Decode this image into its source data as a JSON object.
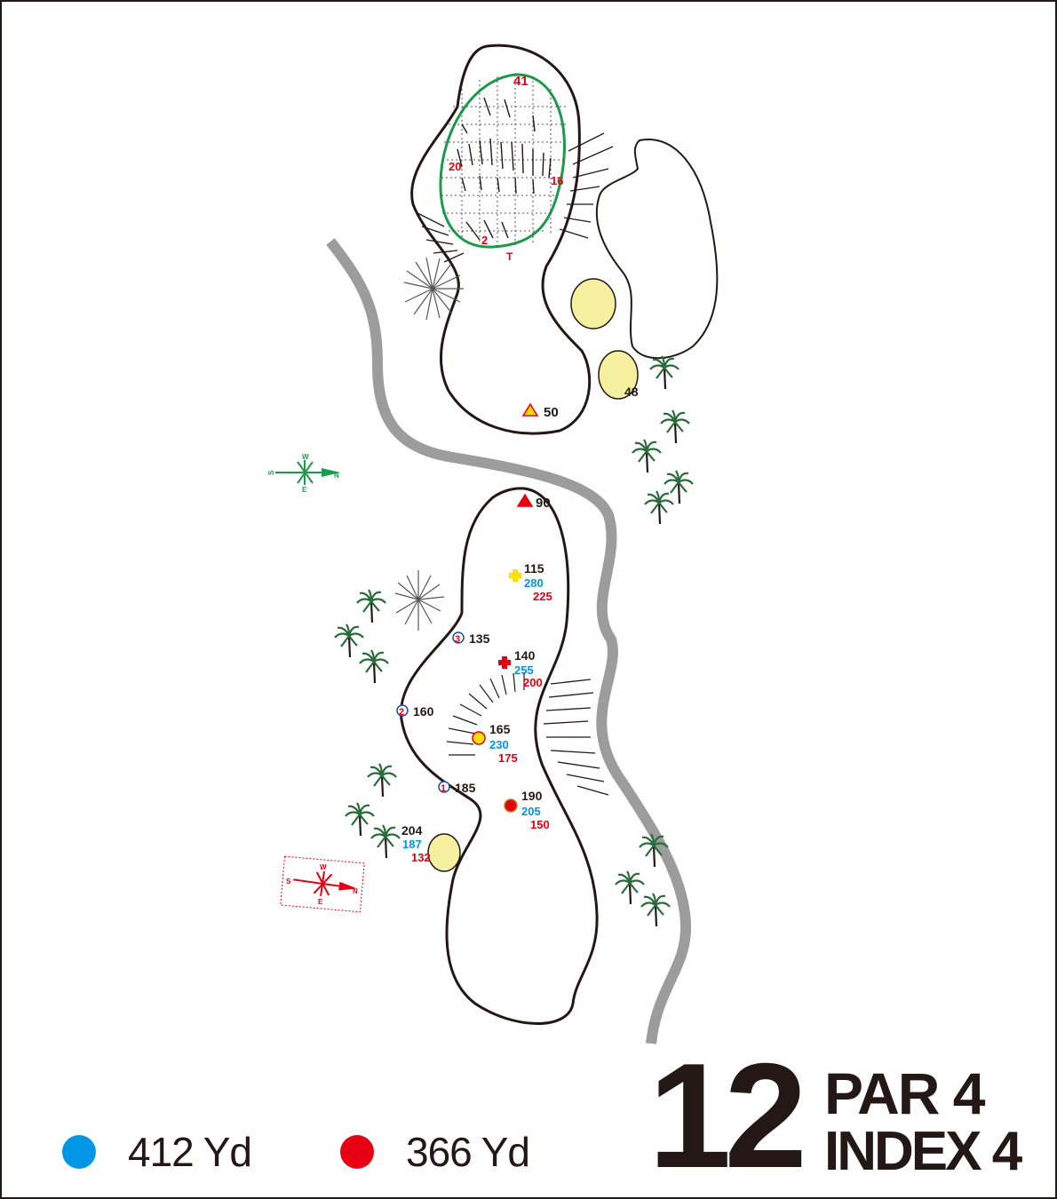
{
  "hole": {
    "number": "12",
    "par_label": "PAR 4",
    "index_label": "INDEX 4"
  },
  "tees": [
    {
      "color": "#0096e6",
      "label": "412 Yd"
    },
    {
      "color": "#e60012",
      "label": "366 Yd"
    }
  ],
  "colors": {
    "outline": "#231815",
    "green_edge": "#1c9a4b",
    "bunker": "#f5f0a0",
    "path": "#9c9c9c",
    "red": "#e60012",
    "blue": "#0096e6",
    "yellow": "#ffe000",
    "compass_green": "#1c9a4b"
  },
  "green": {
    "back_depth": "41",
    "left_width": "20",
    "right_width": "16",
    "front_depth": "2",
    "front_marker": "T"
  },
  "bunker_distances": {
    "right_bunker": "48"
  },
  "markers": {
    "triangle_50": "50",
    "triangle_90": "90",
    "plus_yellow": {
      "black": "115",
      "blue": "280",
      "red": "225"
    },
    "plus_red": {
      "black": "140",
      "blue": "255",
      "red": "200"
    },
    "dot_yellow": {
      "black": "165",
      "blue": "230",
      "red": "175"
    },
    "dot_red": {
      "black": "190",
      "blue": "205",
      "red": "150"
    },
    "bunker_left": {
      "black": "204",
      "blue": "187",
      "red": "132"
    },
    "circle_3": {
      "num": "3",
      "dist": "135"
    },
    "circle_2": {
      "num": "2",
      "dist": "160"
    },
    "circle_1": {
      "num": "1",
      "dist": "185"
    }
  },
  "compass": {
    "n": "N",
    "s": "S",
    "e": "E",
    "w": "W"
  },
  "icons": [
    "palm-tree-icon",
    "compass-rose-icon",
    "triangle-marker-icon",
    "cross-marker-icon",
    "circle-marker-icon"
  ]
}
